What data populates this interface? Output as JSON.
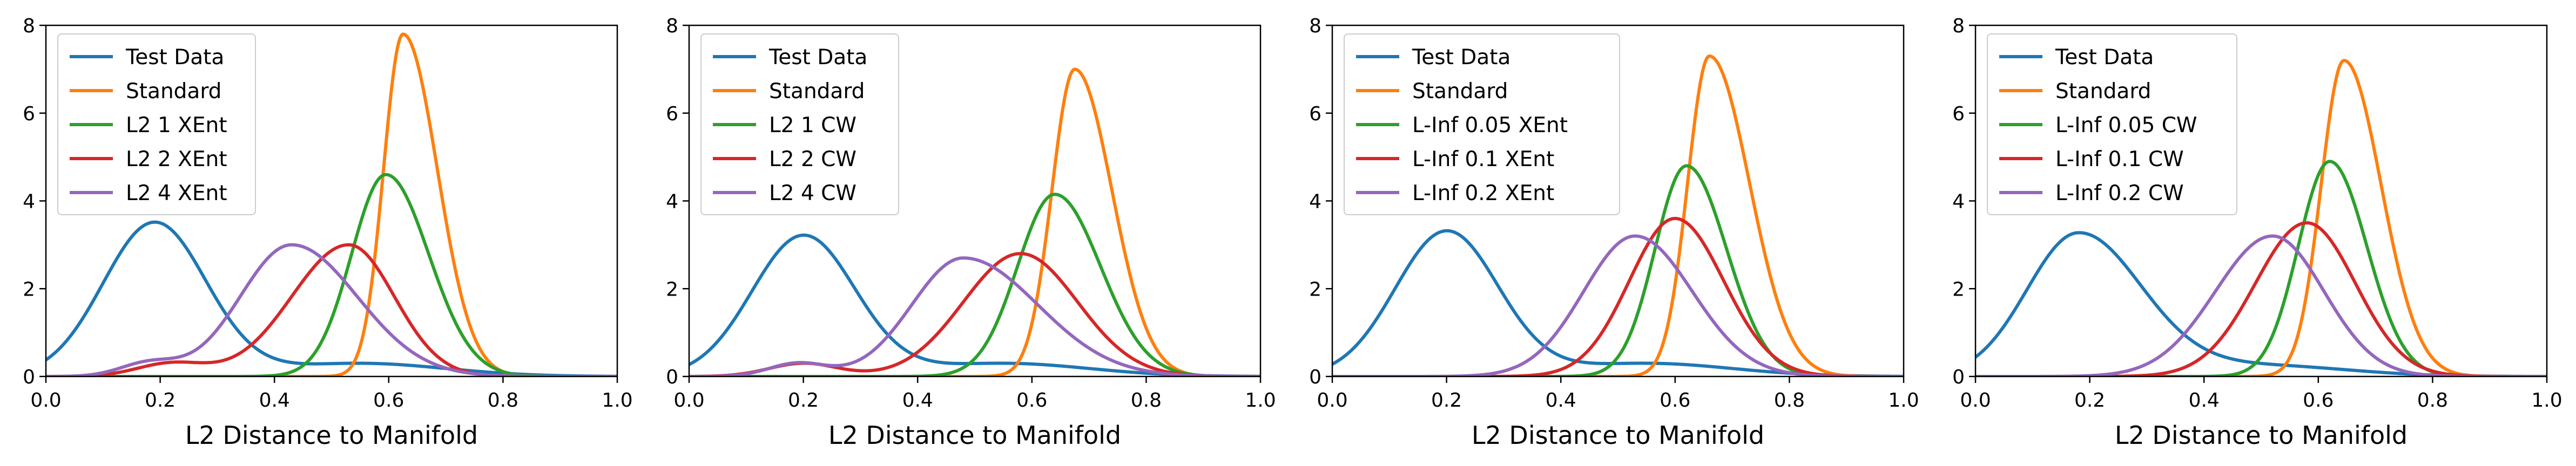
{
  "chart_data": [
    {
      "type": "line",
      "title": "",
      "xlabel": "L2 Distance to Manifold",
      "ylabel": "",
      "xlim": [
        0.0,
        1.0
      ],
      "ylim": [
        0,
        8
      ],
      "xticks": [
        "0.0",
        "0.2",
        "0.4",
        "0.6",
        "0.8",
        "1.0"
      ],
      "yticks": [
        "0",
        "2",
        "4",
        "6",
        "8"
      ],
      "legend_position": "upper-left",
      "series": [
        {
          "name": "Test Data",
          "color": "#1f77b4",
          "components": [
            [
              3.5,
              0.19,
              0.09
            ],
            [
              0.3,
              0.55,
              0.15
            ]
          ]
        },
        {
          "name": "Standard",
          "color": "#ff7f0e",
          "components": [
            [
              7.8,
              0.625,
              0.034,
              0.06
            ]
          ]
        },
        {
          "name": "L2 1 XEnt",
          "color": "#2ca02c",
          "components": [
            [
              4.6,
              0.595,
              0.06,
              0.075
            ]
          ]
        },
        {
          "name": "L2 2 XEnt",
          "color": "#d62728",
          "components": [
            [
              3.0,
              0.53,
              0.1,
              0.08
            ],
            [
              0.3,
              0.22,
              0.06
            ]
          ]
        },
        {
          "name": "L2 4 XEnt",
          "color": "#9467bd",
          "components": [
            [
              3.0,
              0.43,
              0.09,
              0.115
            ],
            [
              0.3,
              0.18,
              0.05
            ]
          ]
        }
      ]
    },
    {
      "type": "line",
      "title": "",
      "xlabel": "L2 Distance to Manifold",
      "ylabel": "",
      "xlim": [
        0.0,
        1.0
      ],
      "ylim": [
        0,
        8
      ],
      "xticks": [
        "0.0",
        "0.2",
        "0.4",
        "0.6",
        "0.8",
        "1.0"
      ],
      "yticks": [
        "0",
        "2",
        "4",
        "6",
        "8"
      ],
      "legend_position": "upper-left",
      "series": [
        {
          "name": "Test Data",
          "color": "#1f77b4",
          "components": [
            [
              3.2,
              0.2,
              0.09
            ],
            [
              0.3,
              0.55,
              0.15
            ]
          ]
        },
        {
          "name": "Standard",
          "color": "#ff7f0e",
          "components": [
            [
              7.0,
              0.675,
              0.04,
              0.065
            ]
          ]
        },
        {
          "name": "L2 1 CW",
          "color": "#2ca02c",
          "components": [
            [
              4.15,
              0.64,
              0.065,
              0.08
            ]
          ]
        },
        {
          "name": "L2 2 CW",
          "color": "#d62728",
          "components": [
            [
              2.8,
              0.58,
              0.1,
              0.1
            ],
            [
              0.3,
              0.2,
              0.06
            ]
          ]
        },
        {
          "name": "L2 4 CW",
          "color": "#9467bd",
          "components": [
            [
              2.7,
              0.48,
              0.09,
              0.13
            ],
            [
              0.3,
              0.19,
              0.05
            ]
          ]
        }
      ]
    },
    {
      "type": "line",
      "title": "",
      "xlabel": "L2 Distance to Manifold",
      "ylabel": "",
      "xlim": [
        0.0,
        1.0
      ],
      "ylim": [
        0,
        8
      ],
      "xticks": [
        "0.0",
        "0.2",
        "0.4",
        "0.6",
        "0.8",
        "1.0"
      ],
      "yticks": [
        "0",
        "2",
        "4",
        "6",
        "8"
      ],
      "legend_position": "upper-left",
      "series": [
        {
          "name": "Test Data",
          "color": "#1f77b4",
          "components": [
            [
              3.3,
              0.2,
              0.09
            ],
            [
              0.3,
              0.55,
              0.15
            ]
          ]
        },
        {
          "name": "Standard",
          "color": "#ff7f0e",
          "components": [
            [
              7.3,
              0.66,
              0.038,
              0.07
            ]
          ]
        },
        {
          "name": "L-Inf 0.05 XEnt",
          "color": "#2ca02c",
          "components": [
            [
              4.8,
              0.62,
              0.055,
              0.07
            ]
          ]
        },
        {
          "name": "L-Inf 0.1 XEnt",
          "color": "#d62728",
          "components": [
            [
              3.6,
              0.6,
              0.08,
              0.085
            ]
          ]
        },
        {
          "name": "L-Inf 0.2 XEnt",
          "color": "#9467bd",
          "components": [
            [
              3.2,
              0.53,
              0.09,
              0.1
            ]
          ]
        }
      ]
    },
    {
      "type": "line",
      "title": "",
      "xlabel": "L2 Distance to Manifold",
      "ylabel": "",
      "xlim": [
        0.0,
        1.0
      ],
      "ylim": [
        0,
        8
      ],
      "xticks": [
        "0.0",
        "0.2",
        "0.4",
        "0.6",
        "0.8",
        "1.0"
      ],
      "yticks": [
        "0",
        "2",
        "4",
        "6",
        "8"
      ],
      "legend_position": "upper-left",
      "series": [
        {
          "name": "Test Data",
          "color": "#1f77b4",
          "components": [
            [
              3.25,
              0.18,
              0.09,
              0.11
            ],
            [
              0.25,
              0.5,
              0.15
            ]
          ]
        },
        {
          "name": "Standard",
          "color": "#ff7f0e",
          "components": [
            [
              7.2,
              0.645,
              0.04,
              0.065
            ]
          ]
        },
        {
          "name": "L-Inf 0.05 CW",
          "color": "#2ca02c",
          "components": [
            [
              4.9,
              0.62,
              0.055,
              0.065
            ]
          ]
        },
        {
          "name": "L-Inf 0.1 CW",
          "color": "#d62728",
          "components": [
            [
              3.5,
              0.58,
              0.09,
              0.085
            ]
          ]
        },
        {
          "name": "L-Inf 0.2 CW",
          "color": "#9467bd",
          "components": [
            [
              3.2,
              0.52,
              0.1,
              0.09
            ]
          ]
        }
      ]
    }
  ]
}
